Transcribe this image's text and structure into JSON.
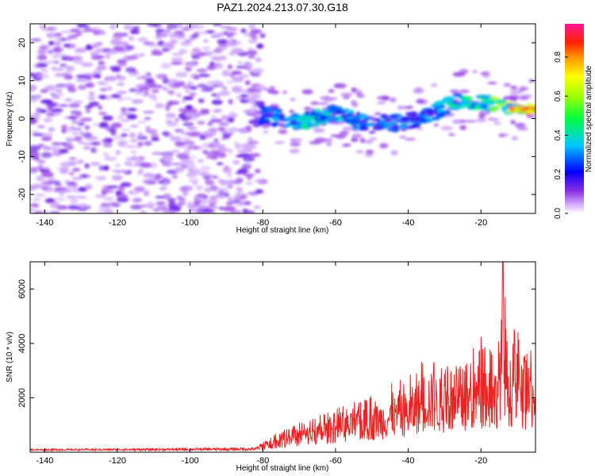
{
  "figure_title": "PAZ1.2024.213.07.30.G18",
  "chart_data": [
    {
      "type": "heatmap",
      "title": "PAZ1.2024.213.07.30.G18",
      "xlabel": "Height of straight line (km)",
      "ylabel": "Frequency (Hz)",
      "xlim": [
        -144,
        -5
      ],
      "ylim": [
        -25,
        25
      ],
      "xticks": [
        -140,
        -120,
        -100,
        -80,
        -60,
        -40,
        -20
      ],
      "yticks": [
        -20,
        -10,
        0,
        10,
        20
      ],
      "colorbar": {
        "label": "Normalized spectral amplitude",
        "range": [
          0,
          0.97
        ],
        "ticks": [
          0.0,
          0.2,
          0.4,
          0.6,
          0.8
        ],
        "tick_labels": [
          "0.0",
          "0.2",
          "0.4",
          "0.6",
          "0.8"
        ],
        "colormap": "rainbow (violet-blue-cyan-green-yellow-orange-red-magenta)"
      },
      "features": [
        {
          "name": "noise-region",
          "x_range": [
            -144,
            -80
          ],
          "freq_range": [
            -25,
            25
          ],
          "amplitude": 0.05
        },
        {
          "name": "signal-track",
          "points": [
            {
              "x": -80,
              "freq": 1.0,
              "amplitude": 0.25
            },
            {
              "x": -70,
              "freq": -1.0,
              "amplitude": 0.4
            },
            {
              "x": -60,
              "freq": 1.5,
              "amplitude": 0.35
            },
            {
              "x": -50,
              "freq": -2.0,
              "amplitude": 0.3
            },
            {
              "x": -40,
              "freq": -0.5,
              "amplitude": 0.3
            },
            {
              "x": -32,
              "freq": 2.0,
              "amplitude": 0.35
            },
            {
              "x": -25,
              "freq": 5.0,
              "amplitude": 0.4
            },
            {
              "x": -18,
              "freq": 4.0,
              "amplitude": 0.5
            },
            {
              "x": -10,
              "freq": 2.5,
              "amplitude": 0.7
            },
            {
              "x": -5,
              "freq": 2.2,
              "amplitude": 0.9
            }
          ]
        }
      ],
      "grid": false
    },
    {
      "type": "line",
      "xlabel": "Height of straight line (km)",
      "ylabel": "SNR (10 * v/v)",
      "xlim": [
        -144,
        -5
      ],
      "ylim": [
        0,
        7000
      ],
      "xticks": [
        -140,
        -120,
        -100,
        -80,
        -60,
        -40,
        -20
      ],
      "yticks": [
        2000,
        4000,
        6000
      ],
      "color": "#ee2222",
      "series": [
        {
          "envelope": [
            {
              "x": -144,
              "y": 100
            },
            {
              "x": -120,
              "y": 110
            },
            {
              "x": -100,
              "y": 130
            },
            {
              "x": -82,
              "y": 150
            },
            {
              "x": -78,
              "y": 600
            },
            {
              "x": -72,
              "y": 1000
            },
            {
              "x": -60,
              "y": 1600
            },
            {
              "x": -50,
              "y": 2100
            },
            {
              "x": -45,
              "y": 2500
            },
            {
              "x": -40,
              "y": 2800
            },
            {
              "x": -35,
              "y": 3800
            },
            {
              "x": -30,
              "y": 3300
            },
            {
              "x": -25,
              "y": 3200
            },
            {
              "x": -20,
              "y": 4300
            },
            {
              "x": -16,
              "y": 3900
            },
            {
              "x": -14,
              "y": 7000
            },
            {
              "x": -12,
              "y": 4300
            },
            {
              "x": -10,
              "y": 4700
            },
            {
              "x": -8,
              "y": 3600
            },
            {
              "x": -6,
              "y": 4100
            },
            {
              "x": -5,
              "y": 3900
            }
          ]
        }
      ],
      "grid": false
    }
  ]
}
